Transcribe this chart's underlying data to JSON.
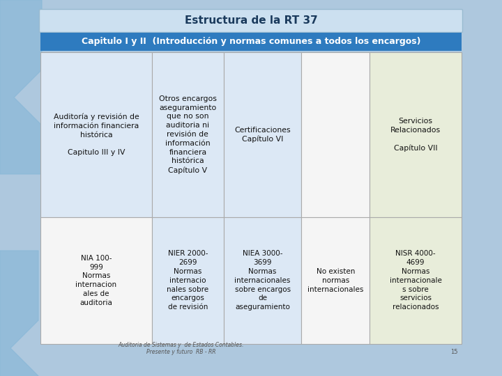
{
  "title": "Estructura de la RT 37",
  "subtitle": "Capitulo I y II  (Introducción y normas comunes a todos los encargos)",
  "title_bg": "#cce0f0",
  "subtitle_bg": "#2e7bbf",
  "subtitle_text_color": "#ffffff",
  "title_text_color": "#1a3a5c",
  "bg_color": "#aec8de",
  "table_bg": "#f0f0f0",
  "col0_bg_r0": "#dce8f5",
  "col1_bg_r0": "#dce8f5",
  "col2_bg_r0": "#dce8f5",
  "col3_bg_r0": "#f5f5f5",
  "col4_bg_r0": "#e8edda",
  "col0_bg_r1": "#f5f5f5",
  "col1_bg_r1": "#dce8f5",
  "col2_bg_r1": "#dce8f5",
  "col3_bg_r1": "#f5f5f5",
  "col4_bg_r1": "#e8edda",
  "row0_col0": "Auditoría y revisión de\ninformación financiera\nhistórica\n\nCapitulo III y IV",
  "row0_col1": "Otros encargos\naseguramiento\nque no son\nauditoria ni\nrevisión de\ninformación\nfinanciera\nhistórica\nCapítulo V",
  "row0_col2": "Certificaciones\nCapítulo VI",
  "row0_col3": "",
  "row0_col4": "Servicios\nRelacionados\n\nCapítulo VII",
  "row1_col0": "NIA 100-\n999\nNormas\ninternacion\nales de\nauditoria",
  "row1_col1": "NIER 2000-\n2699\nNormas\ninternacio\nnales sobre\nencargos\nde revisión",
  "row1_col2": "NIEA 3000-\n3699\nNormas\ninternacionales\nsobre encargos\nde\naseguramiento",
  "row1_col3": "No existen\nnormas\ninternacionales",
  "row1_col4": "NISR 4000-\n4699\nNormas\ninternacionale\ns sobre\nservicios\nrelacionados",
  "footer": "Auditoria de Sistemas y  de Estados Contables.\nPresente y futuro  RB - RR",
  "page_num": "15"
}
